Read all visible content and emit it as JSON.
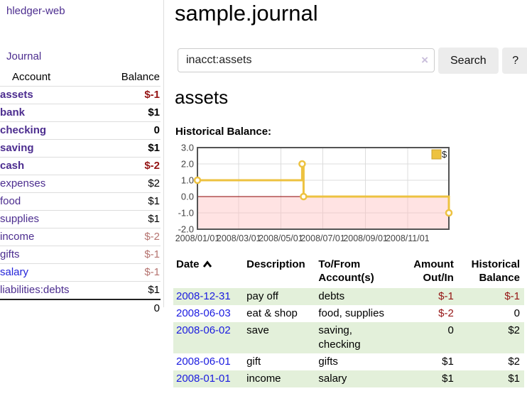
{
  "app": {
    "brand": "hledger-web",
    "nav": {
      "journal": "Journal"
    }
  },
  "colors": {
    "brand_purple": "#4c2d8f",
    "link_blue_date": "#1b1be0",
    "link_blue_account": "#2323d9",
    "negative_strong": "#951414",
    "negative_muted": "#b5736f",
    "row_stripe_green": "#e3f0da",
    "divider_gray": "#dddddd",
    "button_gray": "#ececec"
  },
  "sidebar": {
    "headers": {
      "account": "Account",
      "balance": "Balance"
    },
    "rows": [
      {
        "name": "assets",
        "balance": "$-1",
        "indent": 1,
        "bold": true,
        "balance_class": "neg-strong",
        "name_class": ""
      },
      {
        "name": "bank",
        "balance": "$1",
        "indent": 2,
        "bold": true,
        "balance_class": "",
        "name_class": ""
      },
      {
        "name": "checking",
        "balance": "0",
        "indent": 3,
        "bold": true,
        "balance_class": "",
        "name_class": ""
      },
      {
        "name": "saving",
        "balance": "$1",
        "indent": 3,
        "bold": true,
        "balance_class": "",
        "name_class": ""
      },
      {
        "name": "cash",
        "balance": "$-2",
        "indent": 2,
        "bold": true,
        "balance_class": "neg-strong",
        "name_class": ""
      },
      {
        "name": "expenses",
        "balance": "$2",
        "indent": 1,
        "bold": false,
        "balance_class": "",
        "name_class": ""
      },
      {
        "name": "food",
        "balance": "$1",
        "indent": 2,
        "bold": false,
        "balance_class": "",
        "name_class": ""
      },
      {
        "name": "supplies",
        "balance": "$1",
        "indent": 2,
        "bold": false,
        "balance_class": "",
        "name_class": ""
      },
      {
        "name": "income",
        "balance": "$-2",
        "indent": 1,
        "bold": false,
        "balance_class": "neg-muted",
        "name_class": ""
      },
      {
        "name": "gifts",
        "balance": "$-1",
        "indent": 2,
        "bold": false,
        "balance_class": "neg-muted",
        "name_class": ""
      },
      {
        "name": "salary",
        "balance": "$-1",
        "indent": 2,
        "bold": false,
        "balance_class": "neg-muted",
        "name_class": "blue"
      },
      {
        "name": "liabilities:debts",
        "balance": "$1",
        "indent": 1,
        "bold": false,
        "balance_class": "",
        "name_class": ""
      }
    ],
    "total": "0"
  },
  "main": {
    "title": "sample.journal",
    "search": {
      "value": "inacct:assets",
      "clear_symbol": "×",
      "search_button": "Search",
      "help_button": "?"
    },
    "account_heading": "assets",
    "chart_caption": "Historical Balance:"
  },
  "chart_data": {
    "type": "line",
    "step": true,
    "title": "Historical Balance:",
    "x_range": [
      "2008-01-01",
      "2008-12-31"
    ],
    "ylim": [
      -2.0,
      3.0
    ],
    "x_ticks": [
      {
        "date": "2008-01-01",
        "label": "2008/01/01"
      },
      {
        "date": "2008-03-01",
        "label": "2008/03/01"
      },
      {
        "date": "2008-05-01",
        "label": "2008/05/01"
      },
      {
        "date": "2008-07-01",
        "label": "2008/07/01"
      },
      {
        "date": "2008-09-01",
        "label": "2008/09/01"
      },
      {
        "date": "2008-11-01",
        "label": "2008/11/01"
      }
    ],
    "y_ticks": [
      {
        "value": 3,
        "label": "3.0"
      },
      {
        "value": 2,
        "label": "2.0"
      },
      {
        "value": 1,
        "label": "1.0"
      },
      {
        "value": 0,
        "label": "0.0"
      },
      {
        "value": -1,
        "label": "-1.0"
      },
      {
        "value": -2,
        "label": "-2.0"
      }
    ],
    "series": [
      {
        "name": "$",
        "points": [
          [
            "2008-01-01",
            1
          ],
          [
            "2008-06-01",
            2
          ],
          [
            "2008-06-03",
            0
          ],
          [
            "2008-12-31",
            -1
          ]
        ]
      }
    ],
    "legend_position": "top-right",
    "grid": true,
    "negative_region_highlighted": true,
    "style": {
      "line_color": "#edc240",
      "marker_fill": "#ffffff",
      "negative_fill": "#ffbdbd",
      "zero_line_color": "#8b0000",
      "grid_color": "#dcdcdc",
      "border_color": "#545454",
      "tick_label_color": "#444444"
    }
  },
  "transactions": {
    "headers": [
      {
        "label": "Date",
        "align": "left",
        "sorted_asc": true
      },
      {
        "label": "Description",
        "align": "left"
      },
      {
        "label": "To/From\nAccount(s)",
        "align": "left"
      },
      {
        "label": "Amount\nOut/In",
        "align": "right"
      },
      {
        "label": "Historical\nBalance",
        "align": "right"
      }
    ],
    "rows": [
      {
        "date": "2008-12-31",
        "description": "pay off",
        "accounts": "debts",
        "amount": "$-1",
        "amount_negative": true,
        "balance": "$-1",
        "balance_negative": true,
        "stripe": true
      },
      {
        "date": "2008-06-03",
        "description": "eat & shop",
        "accounts": "food, supplies",
        "amount": "$-2",
        "amount_negative": true,
        "balance": "0",
        "balance_negative": false,
        "stripe": false
      },
      {
        "date": "2008-06-02",
        "description": "save",
        "accounts": "saving,\nchecking",
        "amount": "0",
        "amount_negative": false,
        "balance": "$2",
        "balance_negative": false,
        "stripe": true
      },
      {
        "date": "2008-06-01",
        "description": "gift",
        "accounts": "gifts",
        "amount": "$1",
        "amount_negative": false,
        "balance": "$2",
        "balance_negative": false,
        "stripe": false
      },
      {
        "date": "2008-01-01",
        "description": "income",
        "accounts": "salary",
        "amount": "$1",
        "amount_negative": false,
        "balance": "$1",
        "balance_negative": false,
        "stripe": true
      }
    ]
  }
}
